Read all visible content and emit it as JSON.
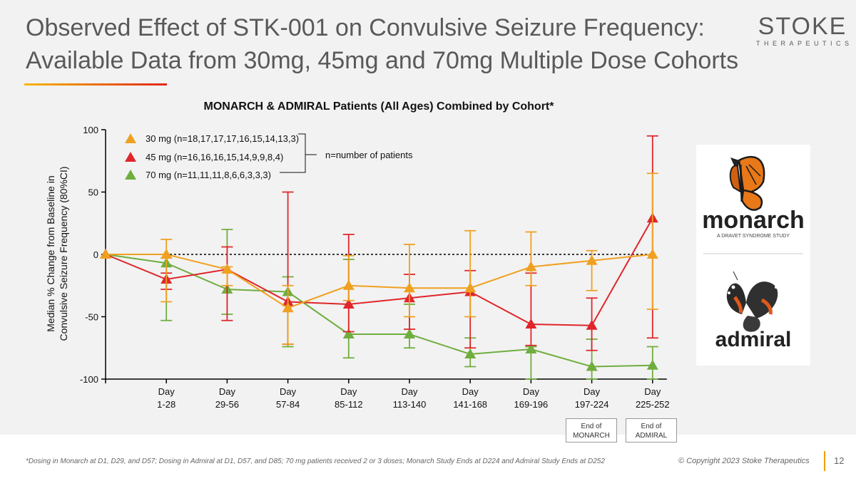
{
  "title_line1": "Observed Effect of STK-001 on Convulsive Seizure Frequency:",
  "title_line2": "Available Data from 30mg, 45mg and 70mg Multiple Dose Cohorts",
  "logo": {
    "word": "STOKE",
    "subtitle": "THERAPEUTICS"
  },
  "partner_logos": {
    "monarch": {
      "name": "monarch",
      "tagline": "A DRAVET SYNDROME STUDY"
    },
    "admiral": {
      "name": "admiral"
    }
  },
  "end_boxes": {
    "monarch": {
      "line1": "End of",
      "line2": "MONARCH"
    },
    "admiral": {
      "line1": "End of",
      "line2": "ADMIRAL"
    }
  },
  "footer_note": "*Dosing in Monarch at D1, D29, and D57; Dosing in Admiral at D1, D57, and D85; 70 mg patients received 2 or 3 doses; Monarch Study Ends at D224 and Admiral Study Ends at D252",
  "copyright": "© Copyright 2023 Stoke Therapeutics",
  "page_number": "12",
  "legend_note": "n=number of patients",
  "colors": {
    "30mg": "#f0a020",
    "45mg": "#e0262b",
    "70mg": "#6fae3e",
    "axis": "#000000"
  },
  "chart_data": {
    "type": "line",
    "title": "MONARCH & ADMIRAL Patients (All Ages) Combined by Cohort*",
    "xlabel": "",
    "ylabel_line1": "Median % Change from Baseline in",
    "ylabel_line2": "Convulsive Seizure Frequency (80%CI)",
    "ylim": [
      -100,
      100
    ],
    "yticks": [
      100,
      50,
      0,
      -50,
      -100
    ],
    "categories": [
      {
        "day": "",
        "range": ""
      },
      {
        "day": "Day",
        "range": "1-28"
      },
      {
        "day": "Day",
        "range": "29-56"
      },
      {
        "day": "Day",
        "range": "57-84"
      },
      {
        "day": "Day",
        "range": "85-112"
      },
      {
        "day": "Day",
        "range": "113-140"
      },
      {
        "day": "Day",
        "range": "141-168"
      },
      {
        "day": "Day",
        "range": "169-196"
      },
      {
        "day": "Day",
        "range": "197-224"
      },
      {
        "day": "Day",
        "range": "225-252"
      }
    ],
    "baseline": 0,
    "series": [
      {
        "name": "30 mg (n=18,17,17,17,16,15,14,13,3)",
        "key": "30mg",
        "values": [
          0,
          0,
          -12,
          -43,
          -25,
          -27,
          -27,
          -10,
          -5,
          0
        ],
        "ci_low": [
          null,
          -38,
          -25,
          -72,
          -37,
          -50,
          -50,
          -25,
          -29,
          -44
        ],
        "ci_high": [
          null,
          12,
          -10,
          -25,
          -1,
          8,
          19,
          18,
          3,
          65
        ]
      },
      {
        "name": "45 mg (n=16,16,16,15,14,9,9,8,4)",
        "key": "45mg",
        "values": [
          0,
          -20,
          -12,
          -38,
          -40,
          -35,
          -30,
          -56,
          -57,
          29
        ],
        "ci_low": [
          null,
          -28,
          -53,
          -72,
          -62,
          -60,
          -75,
          -73,
          -77,
          -67
        ],
        "ci_high": [
          null,
          -15,
          6,
          50,
          16,
          -16,
          -13,
          -15,
          -35,
          95
        ]
      },
      {
        "name": "70 mg (n=11,11,11,8,6,6,3,3,3)",
        "key": "70mg",
        "values": [
          0,
          -7,
          -28,
          -30,
          -64,
          -64,
          -80,
          -76,
          -90,
          -89
        ],
        "ci_low": [
          null,
          -53,
          -48,
          -74,
          -83,
          -75,
          -90,
          -100,
          -100,
          -100
        ],
        "ci_high": [
          null,
          -3,
          20,
          -18,
          -4,
          -40,
          -67,
          -74,
          -68,
          -74
        ]
      }
    ]
  }
}
